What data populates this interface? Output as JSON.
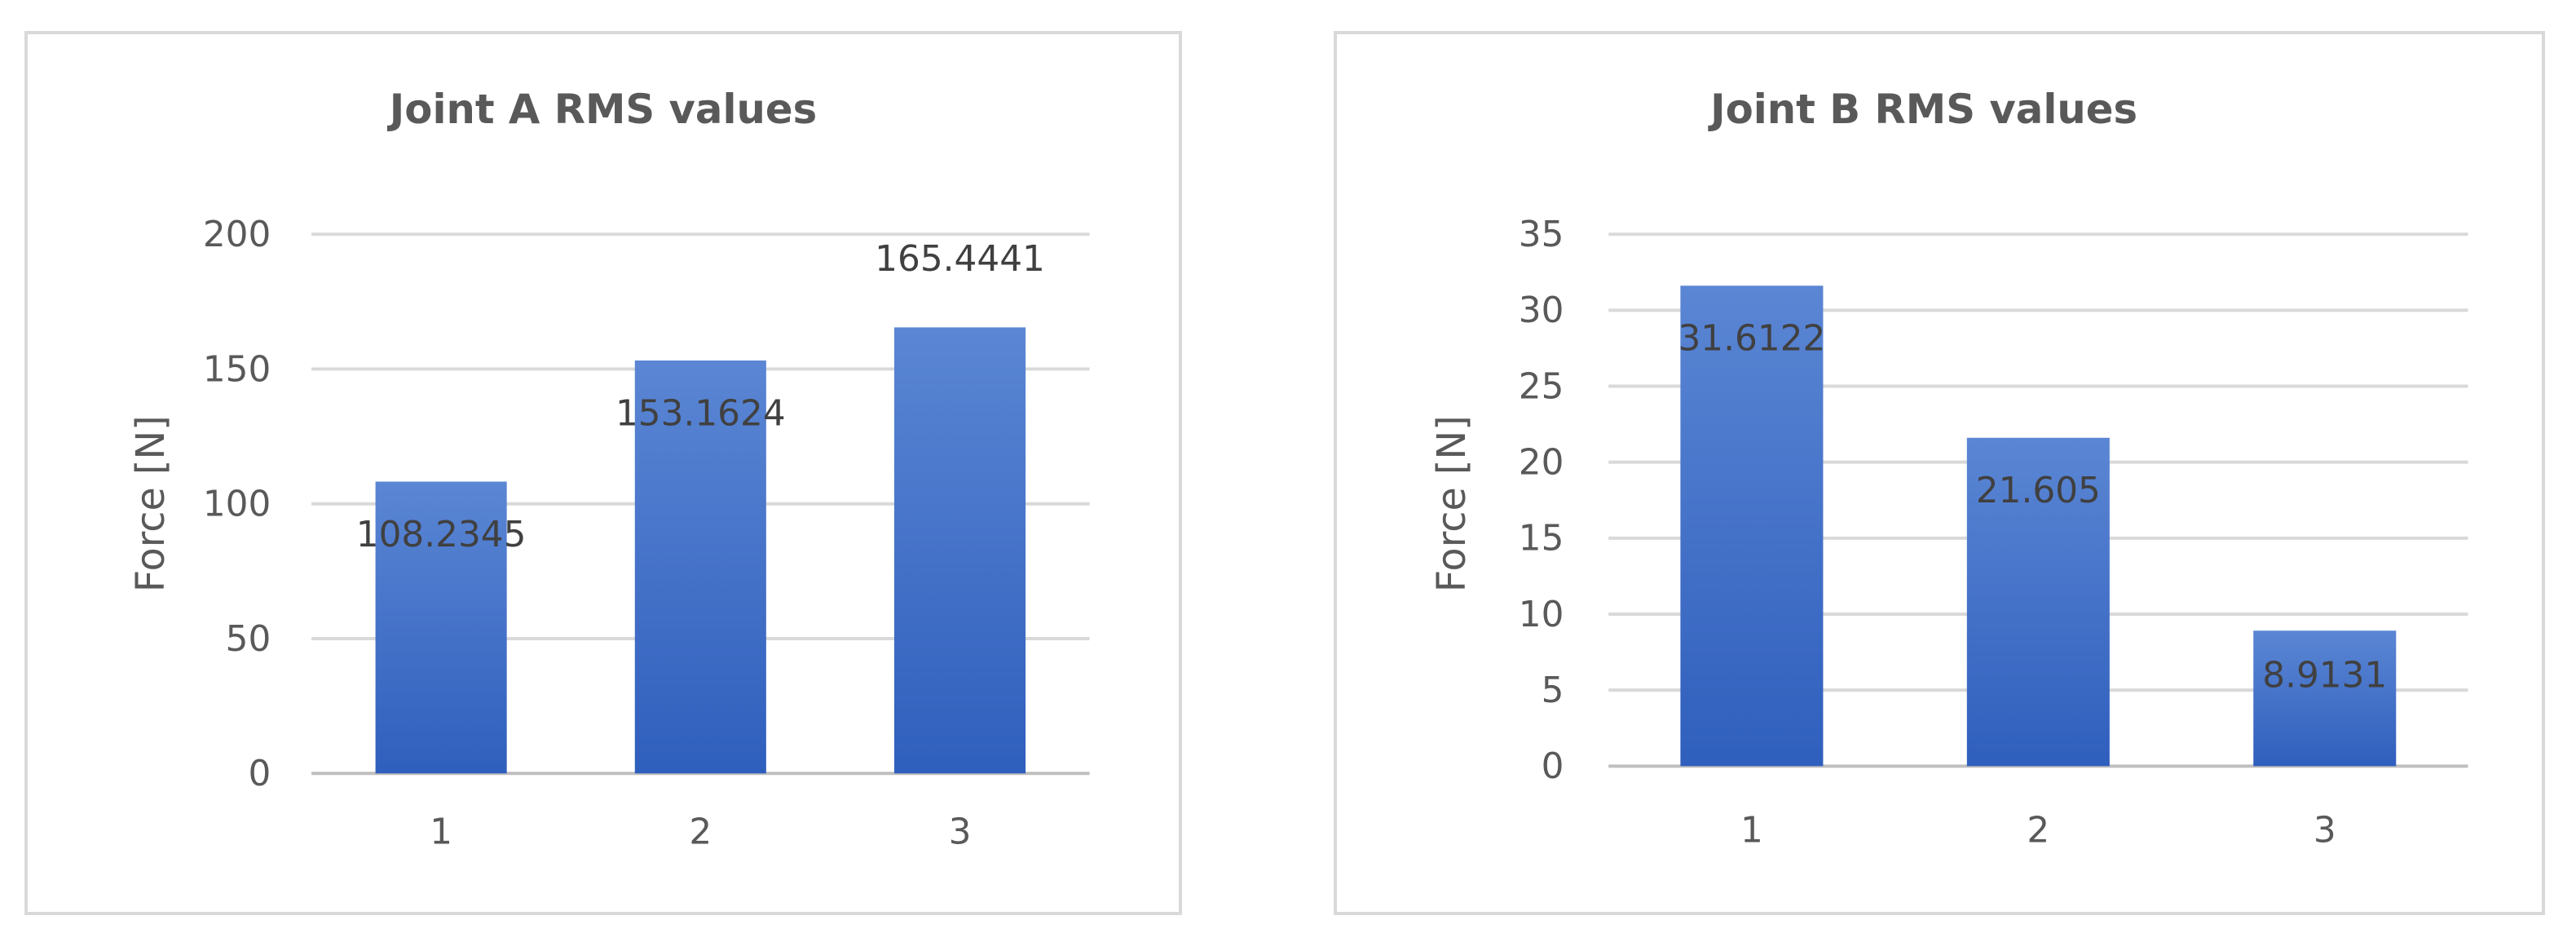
{
  "colors": {
    "bar": "#4472c4",
    "bar_dark": "#2f5fbd",
    "bar_light": "#5b86d4",
    "grid": "#d9d9d9",
    "text": "#595959"
  },
  "chart_data": [
    {
      "type": "bar",
      "title": "Joint A RMS values",
      "xlabel": "",
      "ylabel": "Force [N]",
      "categories": [
        "1",
        "2",
        "3"
      ],
      "values": [
        108.2345,
        153.1624,
        165.4441
      ],
      "data_labels": [
        "108.2345",
        "153.1624",
        "165.4441"
      ],
      "ylim": [
        0,
        200
      ],
      "yticks": [
        0,
        50,
        100,
        150,
        200
      ],
      "grid": true,
      "legend": "none"
    },
    {
      "type": "bar",
      "title": "Joint B RMS values",
      "xlabel": "",
      "ylabel": "Force [N]",
      "categories": [
        "1",
        "2",
        "3"
      ],
      "values": [
        31.6122,
        21.605,
        8.9131
      ],
      "data_labels": [
        "31.6122",
        "21.605",
        "8.9131"
      ],
      "ylim": [
        0,
        35
      ],
      "yticks": [
        0,
        5,
        10,
        15,
        20,
        25,
        30,
        35
      ],
      "grid": true,
      "legend": "none"
    }
  ]
}
